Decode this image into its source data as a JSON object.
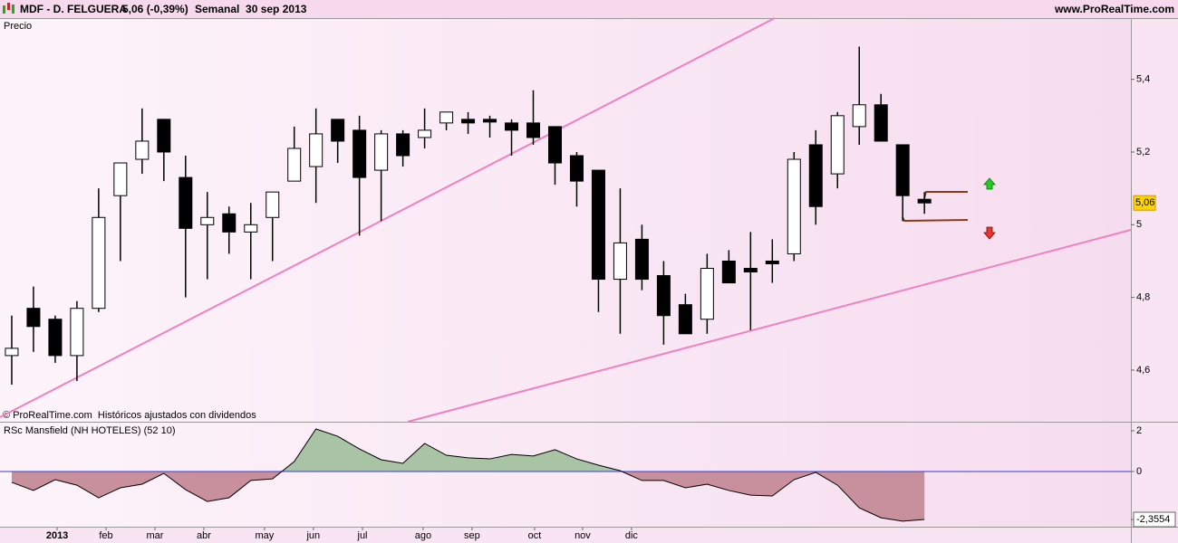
{
  "header": {
    "ticker": "MDF - D. FELGUERA",
    "quote": "5,06 (-0,39%)",
    "period": "Semanal  30 sep 2013",
    "site": "www.ProRealTime.com"
  },
  "footer": "© ProRealTime.com  Históricos ajustados con dividendos",
  "chart_data": [
    {
      "type": "candlestick",
      "title": "Precio",
      "open": [
        4.64,
        4.77,
        4.74,
        4.64,
        4.77,
        5.08,
        5.18,
        5.29,
        5.13,
        5.0,
        5.03,
        4.98,
        5.02,
        5.12,
        5.16,
        5.29,
        5.26,
        5.15,
        5.25,
        5.24,
        5.28,
        5.29,
        5.29,
        5.28,
        5.28,
        5.27,
        5.19,
        5.15,
        4.85,
        4.96,
        4.86,
        4.78,
        4.74,
        4.9,
        4.88,
        4.9,
        4.92,
        5.22,
        5.14,
        5.27,
        5.33,
        5.22,
        5.07
      ],
      "high": [
        4.75,
        4.83,
        4.75,
        4.79,
        5.1,
        5.17,
        5.32,
        5.29,
        5.19,
        5.09,
        5.05,
        5.06,
        5.09,
        5.27,
        5.32,
        5.29,
        5.3,
        5.26,
        5.26,
        5.32,
        5.31,
        5.31,
        5.3,
        5.29,
        5.37,
        5.27,
        5.2,
        5.15,
        5.1,
        5.0,
        4.9,
        4.81,
        4.92,
        4.93,
        4.98,
        4.96,
        5.2,
        5.26,
        5.31,
        5.49,
        5.36,
        5.22,
        5.09
      ],
      "low": [
        4.56,
        4.65,
        4.62,
        4.57,
        4.76,
        4.9,
        5.14,
        5.12,
        4.8,
        4.85,
        4.92,
        4.85,
        4.9,
        5.12,
        5.06,
        5.17,
        4.97,
        5.01,
        5.16,
        5.21,
        5.26,
        5.25,
        5.24,
        5.19,
        5.22,
        5.11,
        5.05,
        4.76,
        4.7,
        4.82,
        4.67,
        4.7,
        4.7,
        4.84,
        4.71,
        4.84,
        4.9,
        5.0,
        5.1,
        5.22,
        5.23,
        5.01,
        5.03
      ],
      "close": [
        4.66,
        4.72,
        4.64,
        4.77,
        5.02,
        5.17,
        5.23,
        5.2,
        4.99,
        5.02,
        4.98,
        5.0,
        5.09,
        5.21,
        5.25,
        5.23,
        5.13,
        5.25,
        5.19,
        5.26,
        5.31,
        5.28,
        5.29,
        5.26,
        5.24,
        5.17,
        5.12,
        4.85,
        4.95,
        4.85,
        4.75,
        4.7,
        4.88,
        4.84,
        4.87,
        4.9,
        5.18,
        5.05,
        5.3,
        5.33,
        5.23,
        5.08,
        5.06
      ],
      "xlim": [
        -0.54,
        51.5
      ],
      "ylim": [
        4.458,
        5.566
      ],
      "yticks": [
        {
          "value": 5.4,
          "label": "5,4"
        },
        {
          "value": 5.2,
          "label": "5,2"
        },
        {
          "value": 5,
          "label": "5"
        },
        {
          "value": 4.8,
          "label": "4,8"
        },
        {
          "value": 4.6,
          "label": "4,6"
        }
      ],
      "last_price": {
        "value": 5.06,
        "label": "5,06"
      }
    },
    {
      "type": "area",
      "title": "RSc Mansfield (NH HOTELES) (52 10)",
      "values": [
        -0.53,
        -0.93,
        -0.4,
        -0.67,
        -1.29,
        -0.8,
        -0.62,
        -0.09,
        -0.89,
        -1.47,
        -1.29,
        -0.44,
        -0.36,
        0.49,
        2.09,
        1.73,
        1.11,
        0.58,
        0.4,
        1.38,
        0.8,
        0.67,
        0.62,
        0.84,
        0.76,
        1.07,
        0.62,
        0.31,
        0.04,
        -0.44,
        -0.44,
        -0.8,
        -0.62,
        -0.93,
        -1.16,
        -1.2,
        -0.4,
        -0.04,
        -0.67,
        -1.78,
        -2.27,
        -2.44,
        -2.3554
      ],
      "xlim": [
        -0.54,
        51.5
      ],
      "ylim": [
        -2.71,
        2.4
      ],
      "yticks": [
        2,
        0,
        {
          "value": -2.3554,
          "label": "-2,3554"
        }
      ],
      "xticks": [
        {
          "value": 2.09,
          "label": "2013"
        },
        {
          "value": 4.34,
          "label": "feb"
        },
        {
          "value": 6.59,
          "label": "mar"
        },
        {
          "value": 8.84,
          "label": "abr"
        },
        {
          "value": 11.63,
          "label": "may"
        },
        {
          "value": 13.88,
          "label": "jun"
        },
        {
          "value": 16.14,
          "label": "jul"
        },
        {
          "value": 18.93,
          "label": "ago"
        },
        {
          "value": 21.18,
          "label": "sep"
        },
        {
          "value": 24.06,
          "label": "oct"
        },
        {
          "value": 26.27,
          "label": "nov"
        },
        {
          "value": 28.52,
          "label": "dic"
        }
      ],
      "colors": {
        "above": "#a9c4a4",
        "below": "#c8909c",
        "zero": "#3b3bd0"
      }
    }
  ]
}
